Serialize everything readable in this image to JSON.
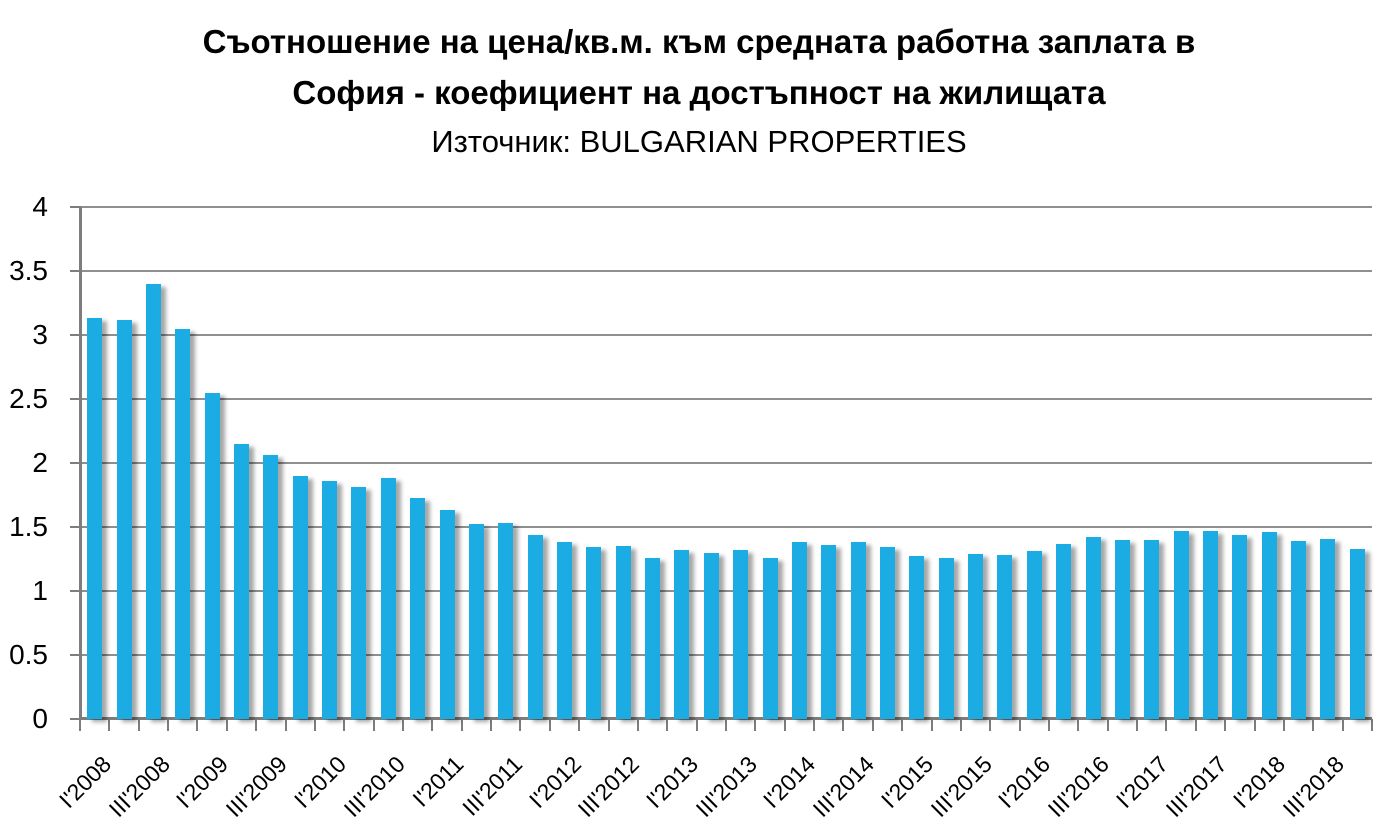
{
  "title": {
    "line1": "Съотношение на цена/кв.м. към средната работна заплата в",
    "line2": "София - коефициент на достъпност на жилищата",
    "source": "Източник: BULGARIAN PROPERTIES"
  },
  "chart_data": {
    "type": "bar",
    "title": "Съотношение на цена/кв.м. към средната работна заплата в София - коефициент на достъпност на жилищата",
    "subtitle": "Източник: BULGARIAN PROPERTIES",
    "categories": [
      "I'2008",
      "II'2008",
      "III'2008",
      "IV'2008",
      "I'2009",
      "II'2009",
      "III'2009",
      "IV'2009",
      "I'2010",
      "II'2010",
      "III'2010",
      "IV'2010",
      "I'2011",
      "II'2011",
      "III'2011",
      "IV'2011",
      "I'2012",
      "II'2012",
      "III'2012",
      "IV'2012",
      "I'2013",
      "II'2013",
      "III'2013",
      "IV'2013",
      "I'2014",
      "II'2014",
      "III'2014",
      "IV'2014",
      "I'2015",
      "II'2015",
      "III'2015",
      "IV'2015",
      "I'2016",
      "II'2016",
      "III'2016",
      "IV'2016",
      "I'2017",
      "II'2017",
      "III'2017",
      "IV'2017",
      "I'2018",
      "II'2018",
      "III'2018",
      "IV'2018"
    ],
    "values": [
      3.13,
      3.12,
      3.4,
      3.05,
      2.55,
      2.15,
      2.06,
      1.9,
      1.86,
      1.81,
      1.88,
      1.73,
      1.63,
      1.52,
      1.53,
      1.44,
      1.38,
      1.34,
      1.35,
      1.26,
      1.32,
      1.3,
      1.32,
      1.26,
      1.38,
      1.36,
      1.38,
      1.34,
      1.27,
      1.26,
      1.29,
      1.28,
      1.31,
      1.37,
      1.42,
      1.4,
      1.4,
      1.47,
      1.47,
      1.44,
      1.46,
      1.39,
      1.41,
      1.33
    ],
    "x_tick_labels": [
      "I'2008",
      "III'2008",
      "I'2009",
      "III'2009",
      "I'2010",
      "III'2010",
      "I'2011",
      "III'2011",
      "I'2012",
      "III'2012",
      "I'2013",
      "III'2013",
      "I'2014",
      "III'2014",
      "I'2015",
      "III'2015",
      "I'2016",
      "III'2016",
      "I'2017",
      "III'2017",
      "I'2018",
      "III'2018"
    ],
    "x_label_every": 2,
    "y_ticks": [
      "0",
      "0.5",
      "1",
      "1.5",
      "2",
      "2.5",
      "3",
      "3.5",
      "4"
    ],
    "ylim": [
      0,
      4
    ],
    "xlabel": "",
    "ylabel": "",
    "grid": "on",
    "legend": "none",
    "bar_color": "#1BACE4",
    "gridline_color": "#8F8F8F",
    "axis_color": "#7D7D7D",
    "text_color": "#000000"
  }
}
